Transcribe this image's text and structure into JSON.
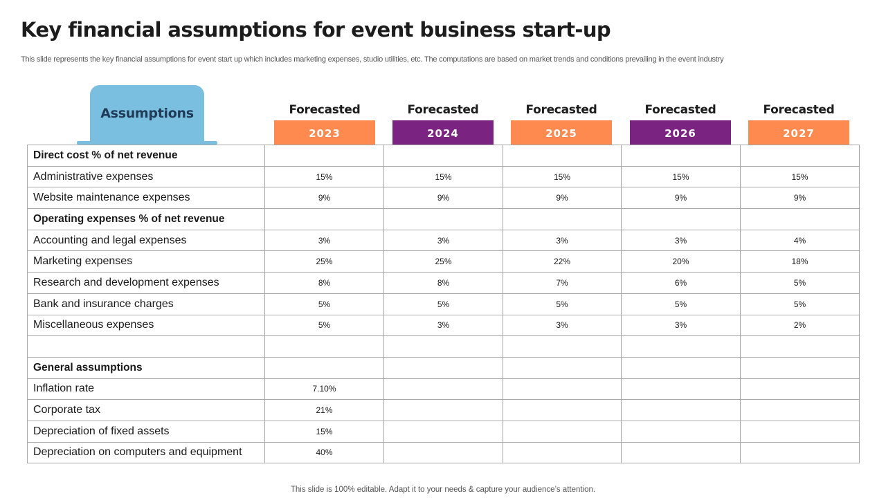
{
  "title": "Key financial assumptions for event business start-up",
  "subtitle": "This slide represents the key financial assumptions for event start up which includes marketing expenses, studio utilities, etc. The computations are based on market trends and conditions prevailing in the event industry",
  "assumptions_label": "Assumptions",
  "columns": [
    {
      "label": "Forecasted",
      "year": "2023",
      "color": "#ff8a50"
    },
    {
      "label": "Forecasted",
      "year": "2024",
      "color": "#7b2380"
    },
    {
      "label": "Forecasted",
      "year": "2025",
      "color": "#ff8a50"
    },
    {
      "label": "Forecasted",
      "year": "2026",
      "color": "#7b2380"
    },
    {
      "label": "Forecasted",
      "year": "2027",
      "color": "#ff8a50"
    }
  ],
  "rows": [
    {
      "label": "Direct cost % of net revenue",
      "section": true,
      "values": [
        "",
        "",
        "",
        "",
        ""
      ]
    },
    {
      "label": "Administrative expenses",
      "section": false,
      "values": [
        "15%",
        "15%",
        "15%",
        "15%",
        "15%"
      ]
    },
    {
      "label": "Website maintenance expenses",
      "section": false,
      "values": [
        "9%",
        "9%",
        "9%",
        "9%",
        "9%"
      ]
    },
    {
      "label": "Operating expenses % of net revenue",
      "section": true,
      "values": [
        "",
        "",
        "",
        "",
        ""
      ]
    },
    {
      "label": "Accounting and legal expenses",
      "section": false,
      "values": [
        "3%",
        "3%",
        "3%",
        "3%",
        "4%"
      ]
    },
    {
      "label": "Marketing expenses",
      "section": false,
      "values": [
        "25%",
        "25%",
        "22%",
        "20%",
        "18%"
      ]
    },
    {
      "label": "Research and development expenses",
      "section": false,
      "values": [
        "8%",
        "8%",
        "7%",
        "6%",
        "5%"
      ]
    },
    {
      "label": "Bank and insurance charges",
      "section": false,
      "values": [
        "5%",
        "5%",
        "5%",
        "5%",
        "5%"
      ]
    },
    {
      "label": "Miscellaneous expenses",
      "section": false,
      "values": [
        "5%",
        "3%",
        "3%",
        "3%",
        "2%"
      ]
    },
    {
      "label": "",
      "section": false,
      "values": [
        "",
        "",
        "",
        "",
        ""
      ]
    },
    {
      "label": "General assumptions",
      "section": true,
      "values": [
        "",
        "",
        "",
        "",
        ""
      ]
    },
    {
      "label": "Inflation rate",
      "section": false,
      "values": [
        "7.10%",
        "",
        "",
        "",
        ""
      ]
    },
    {
      "label": "Corporate tax",
      "section": false,
      "values": [
        "21%",
        "",
        "",
        "",
        ""
      ]
    },
    {
      "label": "Depreciation of fixed assets",
      "section": false,
      "values": [
        "15%",
        "",
        "",
        "",
        ""
      ]
    },
    {
      "label": "Depreciation on computers and equipment",
      "section": false,
      "values": [
        "40%",
        "",
        "",
        "",
        ""
      ]
    }
  ],
  "footer": "This slide is 100% editable. Adapt it to your needs & capture your audience’s attention."
}
